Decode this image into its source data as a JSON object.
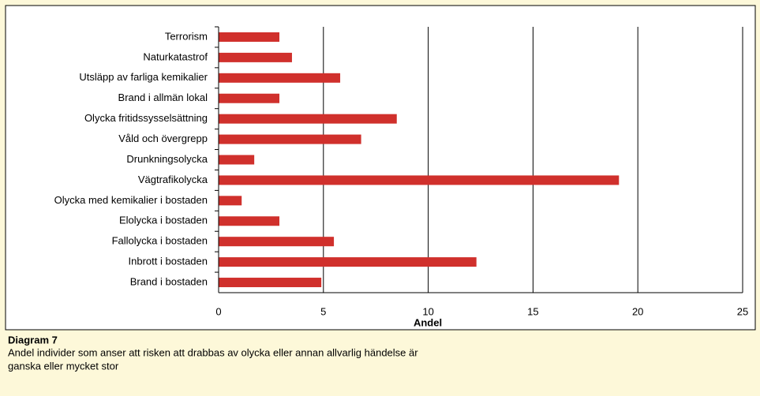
{
  "chart_data": {
    "type": "bar",
    "orientation": "horizontal",
    "categories": [
      "Terrorism",
      "Naturkatastrof",
      "Utsläpp av farliga kemikalier",
      "Brand i allmän lokal",
      "Olycka fritidssysselsättning",
      "Våld och övergrepp",
      "Drunkningsolycka",
      "Vägtrafikolycka",
      "Olycka med kemikalier i bostaden",
      "Elolycka i bostaden",
      "Fallolycka i bostaden",
      "Inbrott i bostaden",
      "Brand i bostaden"
    ],
    "values": [
      2.9,
      3.5,
      5.8,
      2.9,
      8.5,
      6.8,
      1.7,
      19.1,
      1.1,
      2.9,
      5.5,
      12.3,
      4.9
    ],
    "color": "#d0302c",
    "xlim": [
      0,
      25
    ],
    "xticks": [
      0,
      5,
      10,
      15,
      20,
      25
    ],
    "grid": true,
    "xlabel": "Andel",
    "caption_title": "Diagram 7",
    "caption_lines": [
      "Andel individer som anser att risken att drabbas av olycka eller annan allvarlig händelse är",
      "ganska eller mycket stor"
    ]
  }
}
